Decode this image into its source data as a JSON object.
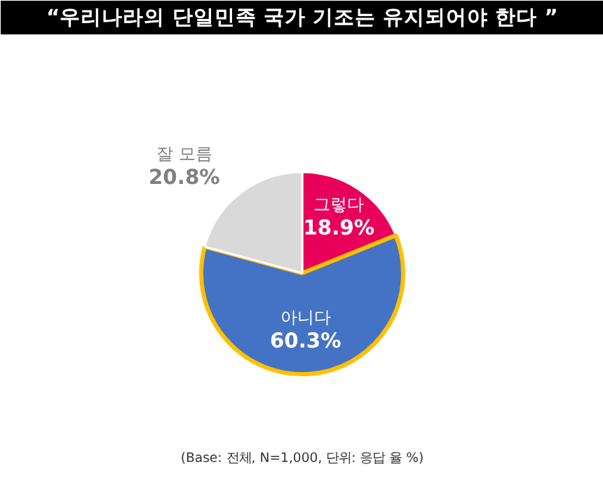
{
  "chart_data": {
    "type": "pie",
    "title": "“우리나라의 단일민족 국가 기조는 유지되어야 한다 ”",
    "categories": [
      "그렇다",
      "아니다",
      "잘 모름"
    ],
    "values": [
      18.9,
      60.3,
      20.8
    ],
    "colors": [
      "#e8005a",
      "#4472c4",
      "#d9d9d9"
    ],
    "value_labels": [
      "18.9%",
      "60.3%",
      "20.8%"
    ],
    "annotations": [
      "(Base: 전체, N=1,000, 단위: 응답 율 %)"
    ]
  }
}
